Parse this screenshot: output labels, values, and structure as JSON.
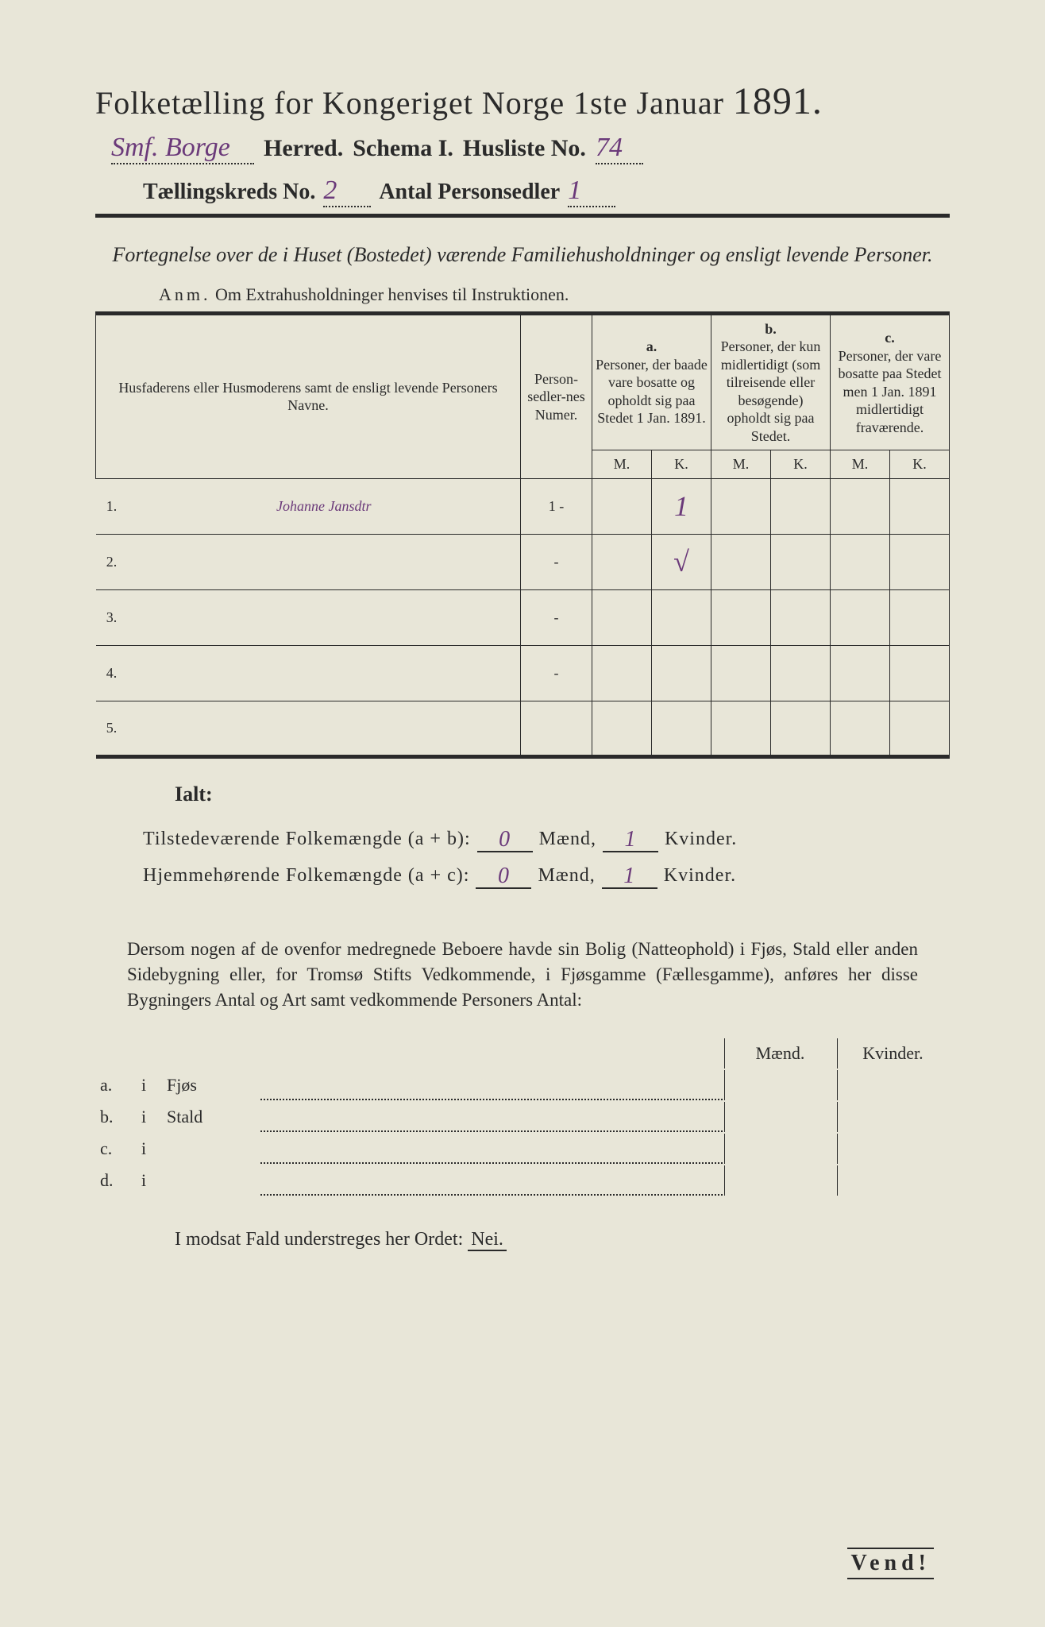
{
  "title": {
    "main": "Folketælling for Kongeriget Norge 1ste Januar",
    "year": "1891."
  },
  "header": {
    "herred_hw": "Smf. Borge",
    "herred_label": "Herred.",
    "schema_label": "Schema I.",
    "husliste_label": "Husliste No.",
    "husliste_hw": "74",
    "kreds_label": "Tællingskreds No.",
    "kreds_hw": "2",
    "antal_label": "Antal Personsedler",
    "antal_hw": "1"
  },
  "intro": {
    "text": "Fortegnelse over de i Huset (Bostedet) værende Familiehusholdninger og ensligt levende Personer.",
    "anm_label": "Anm.",
    "anm_text": "Om Extrahusholdninger henvises til Instruktionen."
  },
  "table": {
    "col1": "Husfaderens eller Husmoderens samt de ensligt levende Personers Navne.",
    "col2": "Person-sedler-nes Numer.",
    "col_a_label": "a.",
    "col_a": "Personer, der baade vare bosatte og opholdt sig paa Stedet 1 Jan. 1891.",
    "col_b_label": "b.",
    "col_b": "Personer, der kun midlertidigt (som tilreisende eller besøgende) opholdt sig paa Stedet.",
    "col_c_label": "c.",
    "col_c": "Personer, der vare bosatte paa Stedet men 1 Jan. 1891 midlertidigt fraværende.",
    "m": "M.",
    "k": "K.",
    "rows": [
      {
        "n": "1.",
        "name": "Johanne Jansdtr",
        "num": "1 -",
        "a_k": "1"
      },
      {
        "n": "2.",
        "name": "",
        "num": "-",
        "a_k": "√"
      },
      {
        "n": "3.",
        "name": "",
        "num": "-",
        "a_k": ""
      },
      {
        "n": "4.",
        "name": "",
        "num": "-",
        "a_k": ""
      },
      {
        "n": "5.",
        "name": "",
        "num": "",
        "a_k": ""
      }
    ]
  },
  "totals": {
    "ialt": "Ialt:",
    "line1_label": "Tilstedeværende Folkemængde (a + b):",
    "line2_label": "Hjemmehørende Folkemængde (a + c):",
    "maend": "Mænd,",
    "kvinder": "Kvinder.",
    "m1": "0",
    "k1": "1",
    "m2": "0",
    "k2": "1"
  },
  "para": {
    "text": "Dersom nogen af de ovenfor medregnede Beboere havde sin Bolig (Natteophold) i Fjøs, Stald eller anden Sidebygning eller, for Tromsø Stifts Vedkommende, i Fjøsgamme (Fællesgamme), anføres her disse Bygningers Antal og Art samt vedkommende Personers Antal:"
  },
  "buildings": {
    "maend": "Mænd.",
    "kvinder": "Kvinder.",
    "rows": [
      {
        "label": "a.",
        "i": "i",
        "name": "Fjøs"
      },
      {
        "label": "b.",
        "i": "i",
        "name": "Stald"
      },
      {
        "label": "c.",
        "i": "i",
        "name": ""
      },
      {
        "label": "d.",
        "i": "i",
        "name": ""
      }
    ]
  },
  "modsat": {
    "text": "I modsat Fald understreges her Ordet:",
    "nei": "Nei."
  },
  "vend": "Vend!",
  "colors": {
    "paper": "#e8e6d8",
    "ink": "#2a2a2a",
    "handwriting": "#6b3a7a"
  }
}
